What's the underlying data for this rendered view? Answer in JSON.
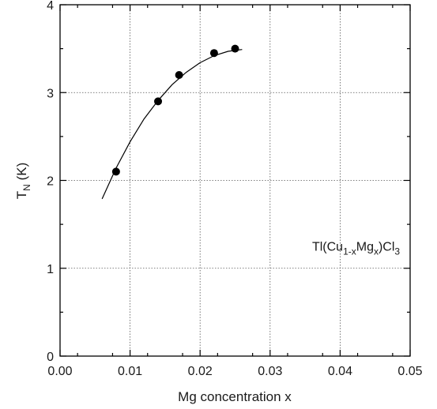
{
  "chart_data": {
    "type": "scatter",
    "xlabel": "Mg concentration x",
    "ylabel": {
      "base": "T",
      "sub": "N",
      "rest": " (K)"
    },
    "xlim": [
      0,
      0.05
    ],
    "ylim": [
      0,
      4
    ],
    "xticks": [
      "0.00",
      "0.01",
      "0.02",
      "0.03",
      "0.04",
      "0.05"
    ],
    "yticks": [
      "0",
      "1",
      "2",
      "3",
      "4"
    ],
    "grid": true,
    "series": [
      {
        "type": "scatter",
        "x": [
          0.008,
          0.014,
          0.017,
          0.022,
          0.025
        ],
        "y": [
          2.1,
          2.9,
          3.2,
          3.45,
          3.5
        ]
      },
      {
        "type": "line",
        "x": [
          0.006,
          0.008,
          0.01,
          0.012,
          0.014,
          0.016,
          0.018,
          0.02,
          0.022,
          0.024,
          0.026
        ],
        "y": [
          1.79,
          2.14,
          2.44,
          2.7,
          2.91,
          3.09,
          3.23,
          3.34,
          3.42,
          3.47,
          3.49
        ]
      }
    ],
    "annotation": {
      "parts": [
        {
          "t": "Tl(Cu",
          "s": "normal"
        },
        {
          "t": "1-x",
          "s": "sub"
        },
        {
          "t": "Mg",
          "s": "normal"
        },
        {
          "t": "x",
          "s": "sub"
        },
        {
          "t": ")Cl",
          "s": "normal"
        },
        {
          "t": "3",
          "s": "sub"
        }
      ],
      "x": 0.036,
      "y": 1.2
    }
  }
}
